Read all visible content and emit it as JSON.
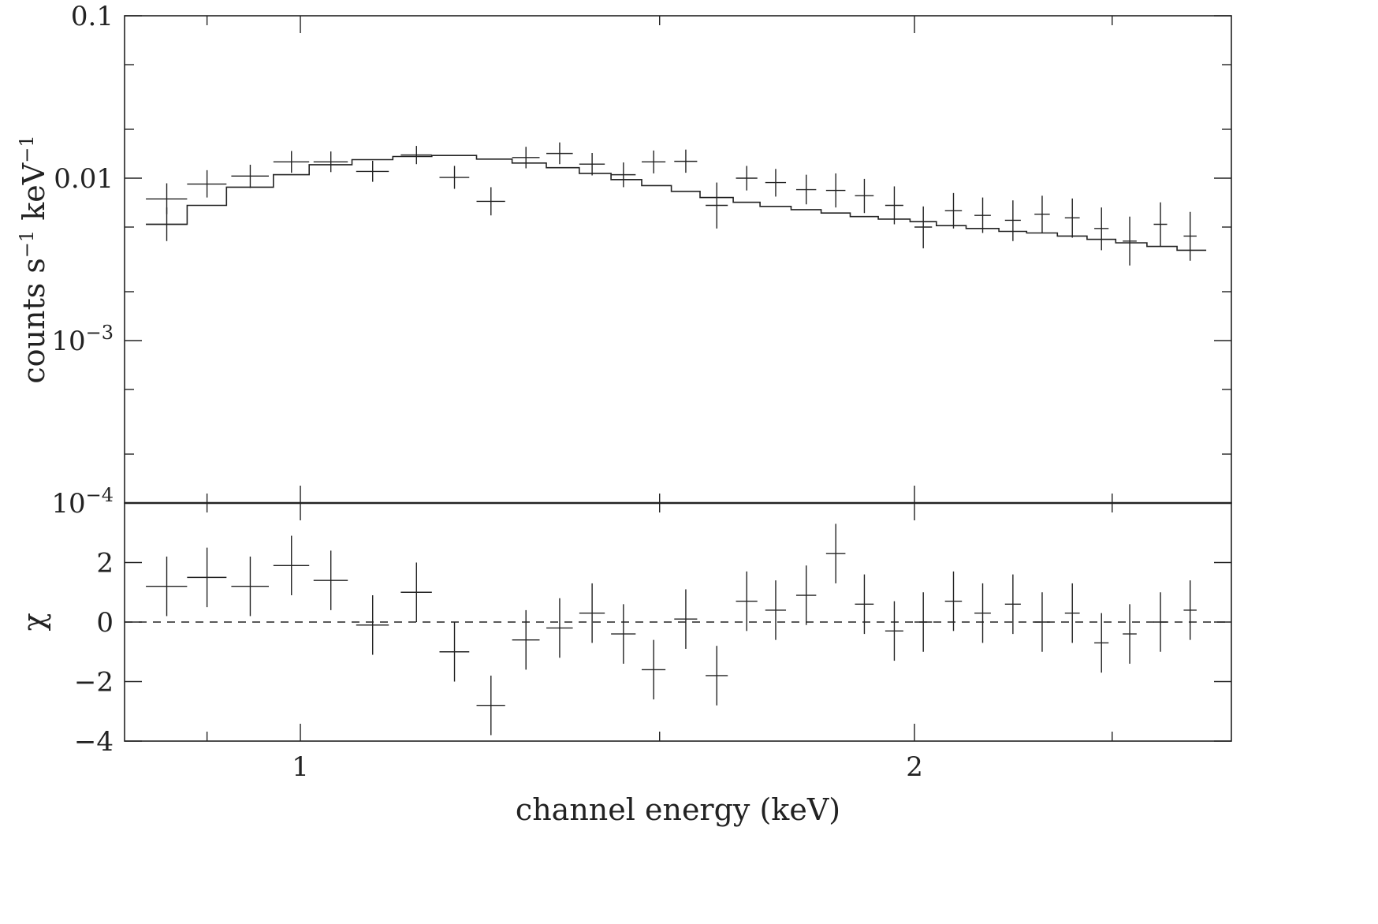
{
  "chart_data": [
    {
      "panel": "spectrum",
      "type": "scatter",
      "xlabel": "channel energy (keV)",
      "ylabel": {
        "prefix": "counts s",
        "exp1": "−1",
        "mid": " keV",
        "exp2": "−1"
      },
      "xscale": "log",
      "yscale": "log",
      "xlim": [
        0.82,
        2.86
      ],
      "ylim": [
        0.0001,
        0.1
      ],
      "x_ticks": [
        {
          "value": 1,
          "label": "1"
        },
        {
          "value": 2,
          "label": "2"
        }
      ],
      "x_minor_ticks": [
        0.9,
        1.5,
        2.5
      ],
      "y_ticks": [
        {
          "value": 0.1,
          "label": "0.1"
        },
        {
          "value": 0.01,
          "label": "0.01"
        },
        {
          "value": 0.001,
          "label": "10",
          "exp": "−3"
        },
        {
          "value": 0.0001,
          "label": "10",
          "exp": "−4"
        }
      ],
      "y_minor_ticks": [
        0.05,
        0.02,
        0.005,
        0.002,
        0.0005,
        0.0002
      ],
      "series": [
        {
          "data": [
            {
              "x": 0.86,
              "xerr": 0.02,
              "y": 0.00745,
              "ylo": 0.006,
              "yhi": 0.0093
            },
            {
              "x": 0.9,
              "xerr": 0.02,
              "y": 0.0092,
              "ylo": 0.0076,
              "yhi": 0.0112
            },
            {
              "x": 0.945,
              "xerr": 0.02,
              "y": 0.0103,
              "ylo": 0.0087,
              "yhi": 0.0121
            },
            {
              "x": 0.99,
              "xerr": 0.02,
              "y": 0.0126,
              "ylo": 0.0108,
              "yhi": 0.0147
            },
            {
              "x": 1.035,
              "xerr": 0.02,
              "y": 0.0126,
              "ylo": 0.0109,
              "yhi": 0.0146
            },
            {
              "x": 1.085,
              "xerr": 0.02,
              "y": 0.011,
              "ylo": 0.0095,
              "yhi": 0.0128
            },
            {
              "x": 1.14,
              "xerr": 0.02,
              "y": 0.0139,
              "ylo": 0.0122,
              "yhi": 0.0158
            },
            {
              "x": 1.19,
              "xerr": 0.02,
              "y": 0.0101,
              "ylo": 0.0086,
              "yhi": 0.0119
            },
            {
              "x": 1.24,
              "xerr": 0.02,
              "y": 0.0072,
              "ylo": 0.0059,
              "yhi": 0.0088
            },
            {
              "x": 1.29,
              "xerr": 0.02,
              "y": 0.0134,
              "ylo": 0.0115,
              "yhi": 0.0156
            },
            {
              "x": 1.34,
              "xerr": 0.02,
              "y": 0.0142,
              "ylo": 0.0122,
              "yhi": 0.0166
            },
            {
              "x": 1.39,
              "xerr": 0.02,
              "y": 0.0122,
              "ylo": 0.0104,
              "yhi": 0.0143
            },
            {
              "x": 1.44,
              "xerr": 0.02,
              "y": 0.0105,
              "ylo": 0.0088,
              "yhi": 0.0125
            },
            {
              "x": 1.49,
              "xerr": 0.02,
              "y": 0.0126,
              "ylo": 0.0107,
              "yhi": 0.0148
            },
            {
              "x": 1.545,
              "xerr": 0.02,
              "y": 0.0127,
              "ylo": 0.0108,
              "yhi": 0.015
            },
            {
              "x": 1.6,
              "xerr": 0.02,
              "y": 0.0068,
              "ylo": 0.0049,
              "yhi": 0.0094
            },
            {
              "x": 1.655,
              "xerr": 0.02,
              "y": 0.01,
              "ylo": 0.0084,
              "yhi": 0.0119
            },
            {
              "x": 1.71,
              "xerr": 0.02,
              "y": 0.0094,
              "ylo": 0.0077,
              "yhi": 0.0114
            },
            {
              "x": 1.77,
              "xerr": 0.02,
              "y": 0.0085,
              "ylo": 0.0069,
              "yhi": 0.0105
            },
            {
              "x": 1.83,
              "xerr": 0.02,
              "y": 0.0084,
              "ylo": 0.0066,
              "yhi": 0.0107
            },
            {
              "x": 1.89,
              "xerr": 0.02,
              "y": 0.0078,
              "ylo": 0.0061,
              "yhi": 0.0099
            },
            {
              "x": 1.955,
              "xerr": 0.02,
              "y": 0.0068,
              "ylo": 0.0052,
              "yhi": 0.0089
            },
            {
              "x": 2.02,
              "xerr": 0.02,
              "y": 0.005,
              "ylo": 0.0037,
              "yhi": 0.0067
            },
            {
              "x": 2.09,
              "xerr": 0.02,
              "y": 0.0063,
              "ylo": 0.0049,
              "yhi": 0.0081
            },
            {
              "x": 2.16,
              "xerr": 0.02,
              "y": 0.0059,
              "ylo": 0.0046,
              "yhi": 0.0076
            },
            {
              "x": 2.235,
              "xerr": 0.02,
              "y": 0.0055,
              "ylo": 0.0041,
              "yhi": 0.0073
            },
            {
              "x": 2.31,
              "xerr": 0.02,
              "y": 0.006,
              "ylo": 0.0046,
              "yhi": 0.0078
            },
            {
              "x": 2.39,
              "xerr": 0.02,
              "y": 0.0057,
              "ylo": 0.0043,
              "yhi": 0.0075
            },
            {
              "x": 2.47,
              "xerr": 0.02,
              "y": 0.0049,
              "ylo": 0.0036,
              "yhi": 0.0066
            },
            {
              "x": 2.55,
              "xerr": 0.02,
              "y": 0.0041,
              "ylo": 0.0029,
              "yhi": 0.0058
            },
            {
              "x": 2.64,
              "xerr": 0.02,
              "y": 0.0052,
              "ylo": 0.0038,
              "yhi": 0.0071
            },
            {
              "x": 2.73,
              "xerr": 0.02,
              "y": 0.0044,
              "ylo": 0.0031,
              "yhi": 0.0062
            }
          ]
        },
        {
          "data": [
            {
              "x": 0.86,
              "xerr": 0.02,
              "y": 0.0052,
              "ylo": 0.0041,
              "yhi": 0.0066
            }
          ]
        }
      ],
      "models": [
        {
          "steps": [
            {
              "x0": 0.84,
              "x1": 0.88,
              "y": 0.0052
            },
            {
              "x0": 0.88,
              "x1": 0.92,
              "y": 0.0068
            },
            {
              "x0": 0.92,
              "x1": 0.97,
              "y": 0.0088
            },
            {
              "x0": 0.97,
              "x1": 1.01,
              "y": 0.0105
            },
            {
              "x0": 1.01,
              "x1": 1.06,
              "y": 0.0121
            },
            {
              "x0": 1.06,
              "x1": 1.11,
              "y": 0.013
            },
            {
              "x0": 1.11,
              "x1": 1.16,
              "y": 0.0136
            },
            {
              "x0": 1.16,
              "x1": 1.22,
              "y": 0.0138
            },
            {
              "x0": 1.22,
              "x1": 1.27,
              "y": 0.0131
            },
            {
              "x0": 1.27,
              "x1": 1.32,
              "y": 0.0124
            },
            {
              "x0": 1.32,
              "x1": 1.37,
              "y": 0.0116
            },
            {
              "x0": 1.37,
              "x1": 1.42,
              "y": 0.0107
            },
            {
              "x0": 1.42,
              "x1": 1.47,
              "y": 0.0098
            },
            {
              "x0": 1.47,
              "x1": 1.52,
              "y": 0.009
            },
            {
              "x0": 1.52,
              "x1": 1.57,
              "y": 0.0083
            },
            {
              "x0": 1.57,
              "x1": 1.63,
              "y": 0.0076
            },
            {
              "x0": 1.63,
              "x1": 1.68,
              "y": 0.0071
            },
            {
              "x0": 1.68,
              "x1": 1.74,
              "y": 0.0067
            },
            {
              "x0": 1.74,
              "x1": 1.8,
              "y": 0.0064
            },
            {
              "x0": 1.8,
              "x1": 1.86,
              "y": 0.0061
            },
            {
              "x0": 1.86,
              "x1": 1.92,
              "y": 0.0058
            },
            {
              "x0": 1.92,
              "x1": 1.99,
              "y": 0.0056
            },
            {
              "x0": 1.99,
              "x1": 2.05,
              "y": 0.0054
            },
            {
              "x0": 2.05,
              "x1": 2.12,
              "y": 0.0051
            },
            {
              "x0": 2.12,
              "x1": 2.2,
              "y": 0.0049
            },
            {
              "x0": 2.2,
              "x1": 2.27,
              "y": 0.0047
            },
            {
              "x0": 2.27,
              "x1": 2.35,
              "y": 0.0046
            },
            {
              "x0": 2.35,
              "x1": 2.43,
              "y": 0.0044
            },
            {
              "x0": 2.43,
              "x1": 2.51,
              "y": 0.0042
            },
            {
              "x0": 2.51,
              "x1": 2.6,
              "y": 0.004
            },
            {
              "x0": 2.6,
              "x1": 2.69,
              "y": 0.0038
            },
            {
              "x0": 2.69,
              "x1": 2.78,
              "y": 0.0036
            }
          ]
        }
      ]
    },
    {
      "panel": "residuals",
      "type": "scatter",
      "xlabel": "channel energy (keV)",
      "ylabel": "χ",
      "xscale": "log",
      "yscale": "linear",
      "xlim": [
        0.82,
        2.86
      ],
      "ylim": [
        -4,
        4
      ],
      "y_ticks": [
        {
          "value": 2,
          "label": "2"
        },
        {
          "value": 0,
          "label": "0"
        },
        {
          "value": -2,
          "label": "−2"
        },
        {
          "value": -4,
          "label": "−4"
        }
      ],
      "zero_line": "dashed",
      "data": [
        {
          "x": 0.86,
          "xerr": 0.02,
          "y": 1.2,
          "yerr": 1.0
        },
        {
          "x": 0.9,
          "xerr": 0.02,
          "y": 1.5,
          "yerr": 1.0
        },
        {
          "x": 0.945,
          "xerr": 0.02,
          "y": 1.2,
          "yerr": 1.0
        },
        {
          "x": 0.99,
          "xerr": 0.02,
          "y": 1.9,
          "yerr": 1.0
        },
        {
          "x": 1.035,
          "xerr": 0.02,
          "y": 1.4,
          "yerr": 1.0
        },
        {
          "x": 1.085,
          "xerr": 0.02,
          "y": -0.1,
          "yerr": 1.0
        },
        {
          "x": 1.14,
          "xerr": 0.02,
          "y": 1.0,
          "yerr": 1.0
        },
        {
          "x": 1.19,
          "xerr": 0.02,
          "y": -1.0,
          "yerr": 1.0
        },
        {
          "x": 1.24,
          "xerr": 0.02,
          "y": -2.8,
          "yerr": 1.0
        },
        {
          "x": 1.29,
          "xerr": 0.02,
          "y": -0.6,
          "yerr": 1.0
        },
        {
          "x": 1.34,
          "xerr": 0.02,
          "y": -0.2,
          "yerr": 1.0
        },
        {
          "x": 1.39,
          "xerr": 0.02,
          "y": 0.3,
          "yerr": 1.0
        },
        {
          "x": 1.44,
          "xerr": 0.02,
          "y": -0.4,
          "yerr": 1.0
        },
        {
          "x": 1.49,
          "xerr": 0.02,
          "y": -1.6,
          "yerr": 1.0
        },
        {
          "x": 1.545,
          "xerr": 0.02,
          "y": 0.1,
          "yerr": 1.0
        },
        {
          "x": 1.6,
          "xerr": 0.02,
          "y": -1.8,
          "yerr": 1.0
        },
        {
          "x": 1.655,
          "xerr": 0.02,
          "y": 0.7,
          "yerr": 1.0
        },
        {
          "x": 1.71,
          "xerr": 0.02,
          "y": 0.4,
          "yerr": 1.0
        },
        {
          "x": 1.77,
          "xerr": 0.02,
          "y": 0.9,
          "yerr": 1.0
        },
        {
          "x": 1.83,
          "xerr": 0.02,
          "y": 2.3,
          "yerr": 1.0
        },
        {
          "x": 1.89,
          "xerr": 0.02,
          "y": 0.6,
          "yerr": 1.0
        },
        {
          "x": 1.955,
          "xerr": 0.02,
          "y": -0.3,
          "yerr": 1.0
        },
        {
          "x": 2.02,
          "xerr": 0.02,
          "y": 0.0,
          "yerr": 1.0
        },
        {
          "x": 2.09,
          "xerr": 0.02,
          "y": 0.7,
          "yerr": 1.0
        },
        {
          "x": 2.16,
          "xerr": 0.02,
          "y": 0.3,
          "yerr": 1.0
        },
        {
          "x": 2.235,
          "xerr": 0.02,
          "y": 0.6,
          "yerr": 1.0
        },
        {
          "x": 2.31,
          "xerr": 0.02,
          "y": 0.0,
          "yerr": 1.0
        },
        {
          "x": 2.39,
          "xerr": 0.02,
          "y": 0.3,
          "yerr": 1.0
        },
        {
          "x": 2.47,
          "xerr": 0.02,
          "y": -0.7,
          "yerr": 1.0
        },
        {
          "x": 2.55,
          "xerr": 0.02,
          "y": -0.4,
          "yerr": 1.0
        },
        {
          "x": 2.64,
          "xerr": 0.02,
          "y": 0.0,
          "yerr": 1.0
        },
        {
          "x": 2.73,
          "xerr": 0.02,
          "y": 0.4,
          "yerr": 1.0
        }
      ]
    }
  ]
}
